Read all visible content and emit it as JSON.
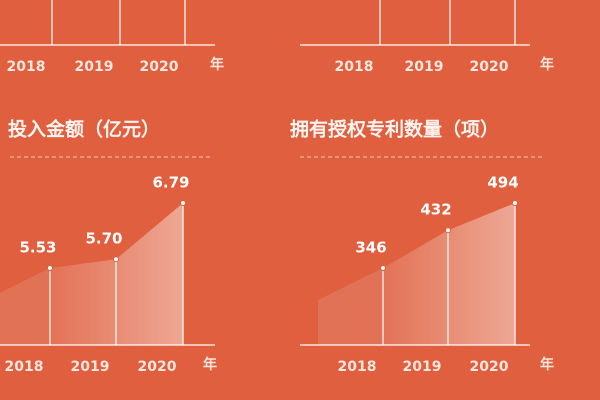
{
  "chart_data": [
    {
      "type": "axis",
      "categories": [
        "2018",
        "2019",
        "2020"
      ],
      "x_label": "年"
    },
    {
      "type": "axis",
      "categories": [
        "2018",
        "2019",
        "2020"
      ],
      "x_label": "年"
    },
    {
      "type": "area",
      "title": "投入金额（亿元）",
      "categories": [
        "2018",
        "2019",
        "2020"
      ],
      "values": [
        5.53,
        5.7,
        6.79
      ],
      "value_labels": [
        "5.53",
        "5.70",
        "6.79"
      ],
      "x_label": "年"
    },
    {
      "type": "area",
      "title": "拥有授权专利数量（项）",
      "categories": [
        "2018",
        "2019",
        "2020"
      ],
      "values": [
        346,
        432,
        494
      ],
      "x_label": "年"
    }
  ]
}
